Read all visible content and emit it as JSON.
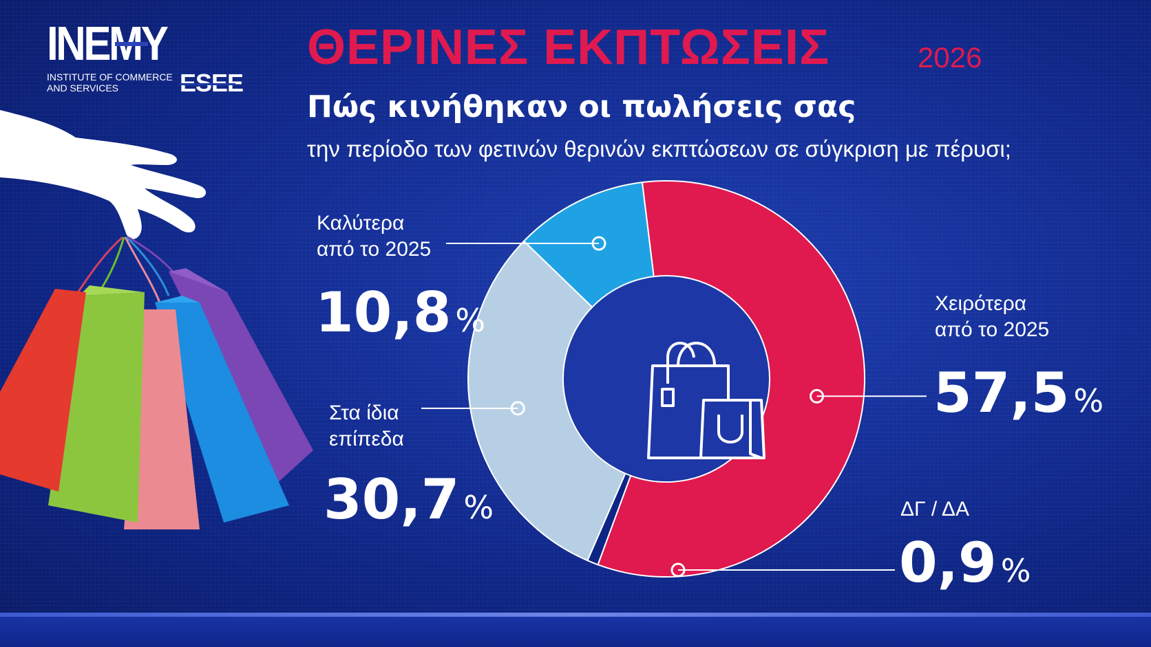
{
  "logo": {
    "name": "INEMY",
    "sub_line1": "INSTITUTE OF COMMERCE",
    "sub_line2": "AND SERVICES",
    "partner": "ESEE"
  },
  "header": {
    "title": "ΘΕΡΙΝΕΣ ΕΚΠΤΩΣΕΙΣ",
    "year": "2026",
    "subtitle": "Πώς κινήθηκαν οι πωλήσεις σας",
    "question": "την περίοδο των φετινών θερινών εκπτώσεων σε σύγκριση με πέρυσι;"
  },
  "colors": {
    "background": "#15309a",
    "accent_red": "#e01a4f",
    "worse": "#e0194e",
    "same": "#b7cfe4",
    "better": "#1fa2e4",
    "dk_na": "#0d2585",
    "center": "#1e37a6"
  },
  "chart_data": {
    "type": "pie",
    "subtype": "donut",
    "unit": "%",
    "slices": [
      {
        "key": "worse",
        "label_line1": "Χειρότερα",
        "label_line2": "από το 2025",
        "value": 57.5,
        "display": "57,5"
      },
      {
        "key": "dk_na",
        "label_line1": "ΔΓ / ΔΑ",
        "label_line2": "",
        "value": 0.9,
        "display": "0,9"
      },
      {
        "key": "same",
        "label_line1": "Στα ίδια",
        "label_line2": "επίπεδα",
        "value": 30.7,
        "display": "30,7"
      },
      {
        "key": "better",
        "label_line1": "Καλύτερα",
        "label_line2": "από το 2025",
        "value": 10.8,
        "display": "10,8"
      }
    ],
    "center_icon": "shopping-bags-icon"
  },
  "percent_sign": "%"
}
